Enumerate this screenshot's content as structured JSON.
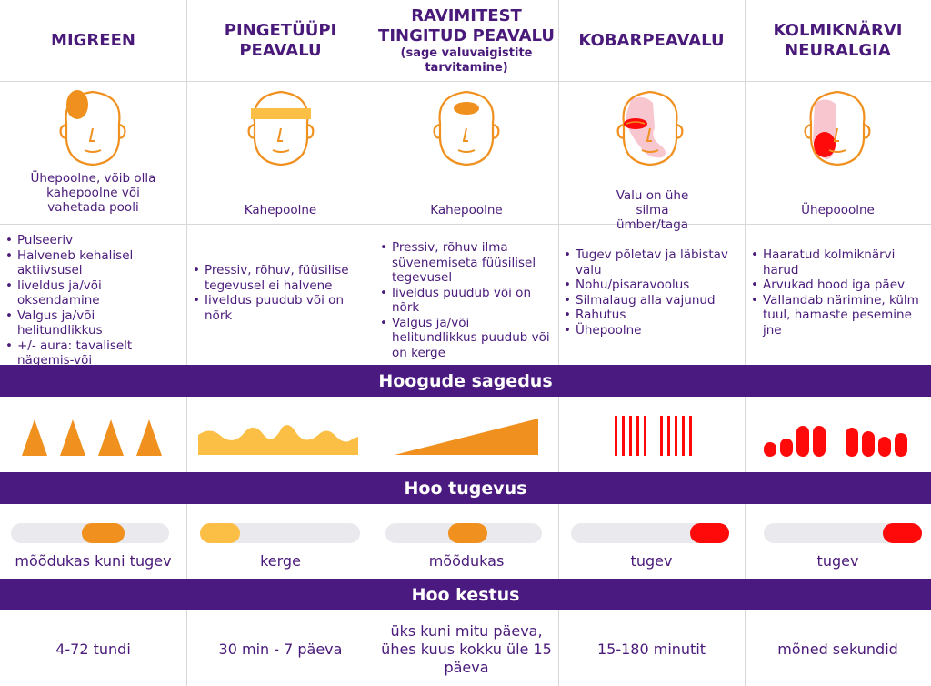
{
  "columns": [
    {
      "title": "MIGREEN",
      "subtitle": "",
      "side_label": "Ühepoolne, võib olla kahepoolne või vahetada pooli",
      "symptoms": [
        "Pulseeriv",
        "Halveneb kehalisel aktiivsusel",
        "Iiveldus ja/või oksendamine",
        "Valgus ja/või helitundlikkus",
        "+/- aura: tavaliselt nägemis-või nahatundlikkuse häired"
      ],
      "intensity_label": "mõõdukas kuni tugev",
      "intensity_range": [
        0.45,
        0.72
      ],
      "intensity_color": "#f0901e",
      "duration": "4-72 tundi",
      "frequency_shape": "triangles",
      "pain_color": "#f0901e"
    },
    {
      "title": "PINGETÜÜPI PEAVALU",
      "subtitle": "",
      "side_label": "Kahepoolne",
      "symptoms": [
        "Pressiv, rõhuv, füüsilise tegevusel ei halvene",
        "Iiveldus puudub või on nõrk"
      ],
      "intensity_label": "kerge",
      "intensity_range": [
        0.0,
        0.25
      ],
      "intensity_color": "#fbbf46",
      "duration": "30 min - 7 päeva",
      "frequency_shape": "wave",
      "pain_color": "#fbbf46"
    },
    {
      "title": "RAVIMITEST TINGITUD PEAVALU",
      "subtitle": "(sage valuvaigistite tarvitamine)",
      "side_label": "Kahepoolne",
      "symptoms": [
        "Pressiv, rõhuv ilma süvenemiseta füüsilisel tegevusel",
        "Iiveldus puudub või on nõrk",
        "Valgus ja/või helitundlikkus puudub või on kerge"
      ],
      "intensity_label": "mõõdukas",
      "intensity_range": [
        0.4,
        0.65
      ],
      "intensity_color": "#f0901e",
      "duration": "üks kuni mitu päeva, ühes kuus kokku üle 15 päeva",
      "frequency_shape": "ramp",
      "pain_color": "#f0901e"
    },
    {
      "title": "KOBARPEAVALU",
      "subtitle": "",
      "side_label": "Valu on ühe silma ümber/taga",
      "symptoms": [
        "Tugev põletav ja läbistav valu",
        "Nohu/pisaravoolus",
        "Silmalaug alla vajunud",
        "Rahutus",
        "Ühepoolne"
      ],
      "intensity_label": "tugev",
      "intensity_range": [
        0.75,
        1.0
      ],
      "intensity_color": "#ff0a0a",
      "duration": "15-180 minutit",
      "frequency_shape": "bars",
      "pain_color": "#ff0a0a"
    },
    {
      "title": "KOLMIKNÄRVI NEURALGIA",
      "subtitle": "",
      "side_label": "Ühepooolne",
      "symptoms": [
        "Haaratud kolmiknärvi harud",
        "Arvukad hood iga päev",
        "Vallandab närimine, külm tuul, hamaste pesemine jne"
      ],
      "intensity_label": "tugev",
      "intensity_range": [
        0.75,
        1.0
      ],
      "intensity_color": "#ff0a0a",
      "duration": "mõned sekundid",
      "frequency_shape": "blocks",
      "pain_color": "#ff0a0a"
    }
  ],
  "bands": {
    "frequency": "Hoogude sagedus",
    "intensity": "Hoo tugevus",
    "duration": "Hoo kestus"
  },
  "colors": {
    "purple": "#4b1a80",
    "orange": "#f0901e",
    "yellow": "#fbbf46",
    "red": "#ff0a0a",
    "pink": "#f7c6cf"
  }
}
